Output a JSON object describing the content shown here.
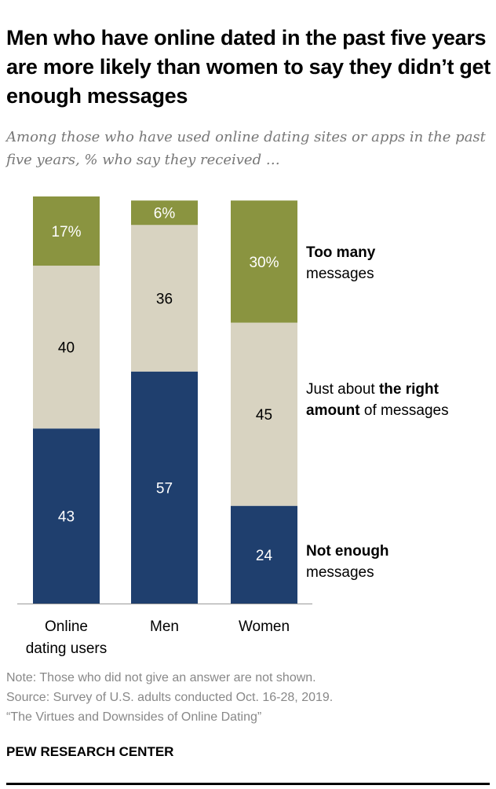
{
  "title": "Men who have online dated in the past five years are more likely than women to say they didn’t get enough messages",
  "subtitle": "Among those who have used online dating sites or apps in the past five years, % who say they received …",
  "legend": {
    "too_many_bold": "Too many",
    "too_many_rest": "messages",
    "right_pre": "Just about ",
    "right_bold": "the right amount",
    "right_post": " of messages",
    "not_enough_bold": "Not enough",
    "not_enough_rest": "messages"
  },
  "notes": {
    "note": "Note: Those who did not give an answer are not shown.",
    "source": "Source: Survey of U.S. adults conducted Oct. 16-28, 2019.",
    "report": "“The Virtues and Downsides of Online Dating”"
  },
  "brand": "PEW RESEARCH CENTER",
  "chart_data": {
    "type": "bar",
    "stacked": true,
    "categories": [
      "Online dating users",
      "Men",
      "Women"
    ],
    "category_labels": [
      [
        "Online",
        "dating users"
      ],
      [
        "Men"
      ],
      [
        "Women"
      ]
    ],
    "series": [
      {
        "name": "Not enough messages",
        "values": [
          43,
          57,
          24
        ],
        "labels": [
          "43",
          "57",
          "24"
        ],
        "color": "#1f3f6e",
        "text_color": "#ffffff"
      },
      {
        "name": "Just about the right amount of messages",
        "values": [
          40,
          36,
          45
        ],
        "labels": [
          "40",
          "36",
          "45"
        ],
        "color": "#d8d3c1",
        "text_color": "#000000"
      },
      {
        "name": "Too many messages",
        "values": [
          17,
          6,
          30
        ],
        "labels": [
          "17%",
          "6%",
          "30%"
        ],
        "color": "#8a9440",
        "text_color": "#ffffff"
      }
    ],
    "ylim": [
      0,
      100
    ],
    "legend_placement": "right"
  }
}
